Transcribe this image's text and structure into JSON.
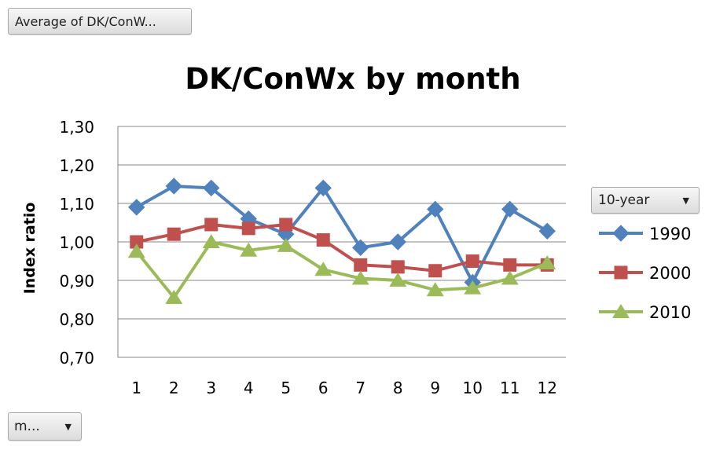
{
  "fields": {
    "value_field": "Average of DK/ConW...",
    "legend_field": "10-year",
    "axis_field": "m...",
    "dropdown_glyph": "▼"
  },
  "chart_data": {
    "type": "line",
    "title": "DK/ConWx by month",
    "xlabel": "",
    "ylabel": "Index ratio",
    "categories": [
      "1",
      "2",
      "3",
      "4",
      "5",
      "6",
      "7",
      "8",
      "9",
      "10",
      "11",
      "12"
    ],
    "ylim": [
      0.7,
      1.3
    ],
    "yticks": [
      "0,70",
      "0,80",
      "0,90",
      "1,00",
      "1,10",
      "1,20",
      "1,30"
    ],
    "ytick_values": [
      0.7,
      0.8,
      0.9,
      1.0,
      1.1,
      1.2,
      1.3
    ],
    "grid": true,
    "legend": "right",
    "series": [
      {
        "name": "1990",
        "color": "#4f81bd",
        "marker": "diamond",
        "values": [
          1.09,
          1.145,
          1.14,
          1.06,
          1.02,
          1.14,
          0.985,
          1.0,
          1.085,
          0.895,
          1.085,
          1.028
        ]
      },
      {
        "name": "2000",
        "color": "#c0504d",
        "marker": "square",
        "values": [
          1.0,
          1.02,
          1.045,
          1.035,
          1.045,
          1.005,
          0.94,
          0.935,
          0.925,
          0.95,
          0.94,
          0.94
        ]
      },
      {
        "name": "2010",
        "color": "#9bbb59",
        "marker": "triangle",
        "values": [
          0.975,
          0.855,
          1.0,
          0.978,
          0.99,
          0.928,
          0.905,
          0.9,
          0.875,
          0.88,
          0.905,
          0.945
        ]
      }
    ]
  }
}
